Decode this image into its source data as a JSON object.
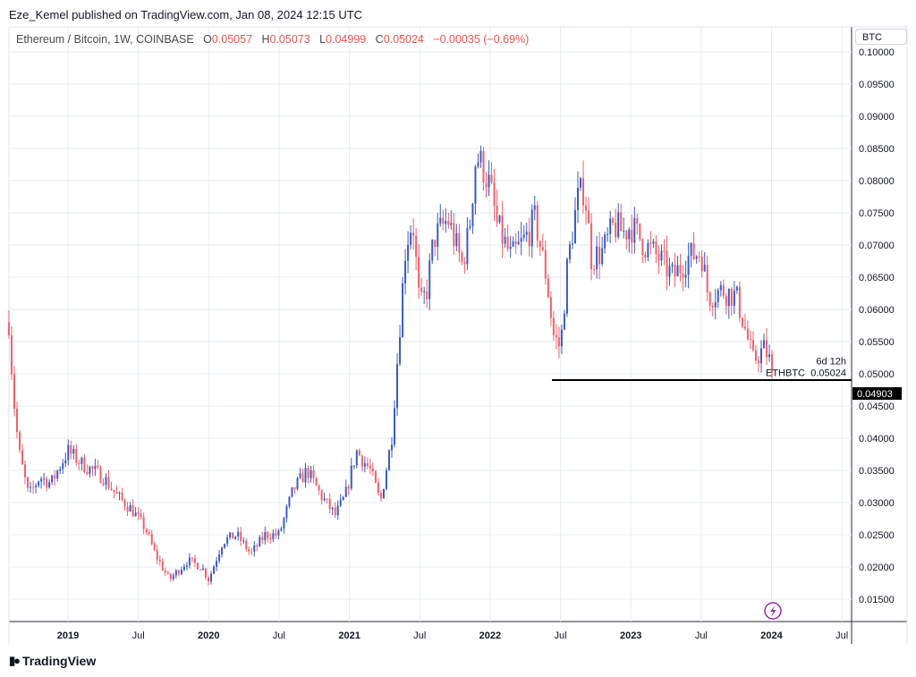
{
  "header": {
    "published": "Eze_Kemel published on TradingView.com, Jan 08, 2024 12:15 UTC"
  },
  "legend": {
    "symbol": "Ethereum / Bitcoin, 1W, COINBASE",
    "o_label": "O",
    "o": "0.05057",
    "h_label": "H",
    "h": "0.05073",
    "l_label": "L",
    "l": "0.04999",
    "c_label": "C",
    "c": "0.05024",
    "change": "−0.00035 (−0.69%)"
  },
  "currency_button": "BTC",
  "price_tag": {
    "symbol": "ETHBTC",
    "price": "0.05024",
    "countdown": "6d 12h"
  },
  "horizontal_line": {
    "value": 0.04903,
    "label": "0.04903"
  },
  "logo_text": "TradingView",
  "colors": {
    "up": "#3b5bc4",
    "down": "#f0606a",
    "grid": "#e6edf3",
    "line": "#000000",
    "accent": "#9c27b0"
  },
  "chart_data": {
    "type": "candlestick",
    "title": "Ethereum / Bitcoin, 1W, COINBASE",
    "interval": "1W",
    "ylim": [
      0.0125,
      0.1005
    ],
    "yticks": [
      "0.10000",
      "0.09500",
      "0.09000",
      "0.08500",
      "0.08000",
      "0.07500",
      "0.07000",
      "0.06500",
      "0.06000",
      "0.05500",
      "0.05000",
      "0.04500",
      "0.04000",
      "0.03500",
      "0.03000",
      "0.02500",
      "0.02000",
      "0.01500"
    ],
    "ytick_values": [
      0.1,
      0.095,
      0.09,
      0.085,
      0.08,
      0.075,
      0.07,
      0.065,
      0.06,
      0.055,
      0.05,
      0.045,
      0.04,
      0.035,
      0.03,
      0.025,
      0.02,
      0.015
    ],
    "xticks": [
      {
        "label": "2019",
        "t": 2019.0,
        "bold": true
      },
      {
        "label": "Jul",
        "t": 2019.5
      },
      {
        "label": "2020",
        "t": 2020.0,
        "bold": true
      },
      {
        "label": "Jul",
        "t": 2020.5
      },
      {
        "label": "2021",
        "t": 2021.0,
        "bold": true
      },
      {
        "label": "Jul",
        "t": 2021.5
      },
      {
        "label": "2022",
        "t": 2022.0,
        "bold": true
      },
      {
        "label": "Jul",
        "t": 2022.5
      },
      {
        "label": "2023",
        "t": 2023.0,
        "bold": true
      },
      {
        "label": "Jul",
        "t": 2023.5
      },
      {
        "label": "2024",
        "t": 2024.0,
        "bold": true
      },
      {
        "label": "Jul",
        "t": 2024.5
      }
    ],
    "xlim": [
      2018.58,
      2024.58
    ],
    "approx_close_keypoints": [
      [
        2018.58,
        0.058
      ],
      [
        2018.61,
        0.047
      ],
      [
        2018.65,
        0.038
      ],
      [
        2018.72,
        0.031
      ],
      [
        2018.8,
        0.034
      ],
      [
        2018.88,
        0.033
      ],
      [
        2018.95,
        0.036
      ],
      [
        2019.0,
        0.038
      ],
      [
        2019.1,
        0.036
      ],
      [
        2019.25,
        0.034
      ],
      [
        2019.35,
        0.031
      ],
      [
        2019.45,
        0.029
      ],
      [
        2019.55,
        0.026
      ],
      [
        2019.62,
        0.022
      ],
      [
        2019.72,
        0.018
      ],
      [
        2019.85,
        0.021
      ],
      [
        2019.95,
        0.02
      ],
      [
        2020.0,
        0.018
      ],
      [
        2020.1,
        0.024
      ],
      [
        2020.2,
        0.025
      ],
      [
        2020.3,
        0.022
      ],
      [
        2020.4,
        0.025
      ],
      [
        2020.5,
        0.025
      ],
      [
        2020.6,
        0.032
      ],
      [
        2020.7,
        0.035
      ],
      [
        2020.8,
        0.031
      ],
      [
        2020.9,
        0.028
      ],
      [
        2020.97,
        0.031
      ],
      [
        2021.05,
        0.038
      ],
      [
        2021.15,
        0.035
      ],
      [
        2021.22,
        0.03
      ],
      [
        2021.3,
        0.04
      ],
      [
        2021.35,
        0.055
      ],
      [
        2021.4,
        0.07
      ],
      [
        2021.45,
        0.074
      ],
      [
        2021.5,
        0.06
      ],
      [
        2021.55,
        0.063
      ],
      [
        2021.6,
        0.071
      ],
      [
        2021.7,
        0.074
      ],
      [
        2021.8,
        0.067
      ],
      [
        2021.85,
        0.072
      ],
      [
        2021.9,
        0.084
      ],
      [
        2021.95,
        0.082
      ],
      [
        2022.0,
        0.079
      ],
      [
        2022.05,
        0.073
      ],
      [
        2022.15,
        0.068
      ],
      [
        2022.25,
        0.071
      ],
      [
        2022.32,
        0.074
      ],
      [
        2022.4,
        0.065
      ],
      [
        2022.45,
        0.056
      ],
      [
        2022.5,
        0.054
      ],
      [
        2022.55,
        0.067
      ],
      [
        2022.62,
        0.077
      ],
      [
        2022.67,
        0.079
      ],
      [
        2022.72,
        0.068
      ],
      [
        2022.8,
        0.069
      ],
      [
        2022.88,
        0.073
      ],
      [
        2022.95,
        0.072
      ],
      [
        2023.0,
        0.073
      ],
      [
        2023.1,
        0.07
      ],
      [
        2023.2,
        0.068
      ],
      [
        2023.3,
        0.065
      ],
      [
        2023.4,
        0.068
      ],
      [
        2023.5,
        0.069
      ],
      [
        2023.55,
        0.062
      ],
      [
        2023.65,
        0.063
      ],
      [
        2023.75,
        0.062
      ],
      [
        2023.8,
        0.058
      ],
      [
        2023.87,
        0.052
      ],
      [
        2023.95,
        0.054
      ],
      [
        2024.02,
        0.05024
      ]
    ]
  }
}
